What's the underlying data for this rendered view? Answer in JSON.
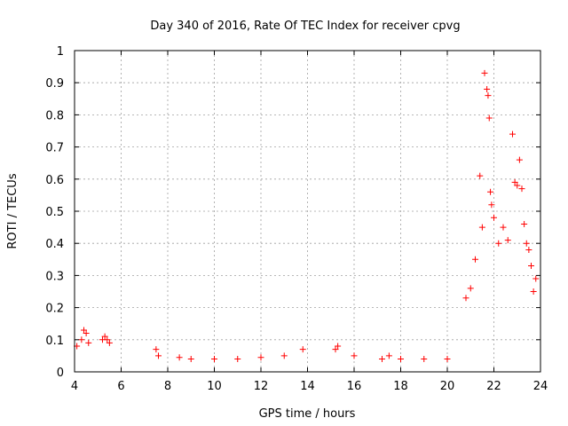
{
  "chart_data": {
    "type": "scatter",
    "title": "Day 340 of 2016, Rate Of TEC Index for receiver cpvg",
    "xlabel": "GPS time / hours",
    "ylabel": "ROTI / TECUs",
    "xlim": [
      4,
      24
    ],
    "ylim": [
      0,
      1
    ],
    "x_ticks": [
      4,
      6,
      8,
      10,
      12,
      14,
      16,
      18,
      20,
      22,
      24
    ],
    "y_ticks": [
      0,
      0.1,
      0.2,
      0.3,
      0.4,
      0.5,
      0.6,
      0.7,
      0.8,
      0.9,
      1
    ],
    "y_tick_labels": [
      "0",
      "0.1",
      "0.2",
      "0.3",
      "0.4",
      "0.5",
      "0.6",
      "0.7",
      "0.8",
      "0.9",
      "1"
    ],
    "grid": true,
    "marker": "+",
    "color": "#ff0000",
    "series": [
      {
        "x": [
          4.1,
          4.3,
          4.4,
          4.5,
          4.6,
          5.2,
          5.3,
          5.4,
          5.5,
          7.5,
          7.6,
          8.5,
          9.0,
          10.0,
          11.0,
          12.0,
          13.0,
          13.8,
          15.2,
          15.3,
          16.0,
          17.2,
          17.5,
          18.0,
          19.0,
          20.0,
          20.8,
          21.0,
          21.2,
          21.4,
          21.5,
          21.6,
          21.7,
          21.75,
          21.8,
          21.85,
          21.9,
          22.0,
          22.2,
          22.4,
          22.6,
          22.8,
          22.9,
          23.0,
          23.1,
          23.2,
          23.3,
          23.4,
          23.5,
          23.6,
          23.7,
          23.8
        ],
        "y": [
          0.08,
          0.1,
          0.13,
          0.12,
          0.09,
          0.1,
          0.11,
          0.1,
          0.09,
          0.07,
          0.05,
          0.045,
          0.04,
          0.04,
          0.04,
          0.045,
          0.05,
          0.07,
          0.07,
          0.08,
          0.05,
          0.04,
          0.05,
          0.04,
          0.04,
          0.04,
          0.23,
          0.26,
          0.35,
          0.61,
          0.45,
          0.93,
          0.88,
          0.86,
          0.79,
          0.56,
          0.52,
          0.48,
          0.4,
          0.45,
          0.41,
          0.74,
          0.59,
          0.58,
          0.66,
          0.57,
          0.46,
          0.4,
          0.38,
          0.33,
          0.25,
          0.29
        ]
      }
    ]
  }
}
